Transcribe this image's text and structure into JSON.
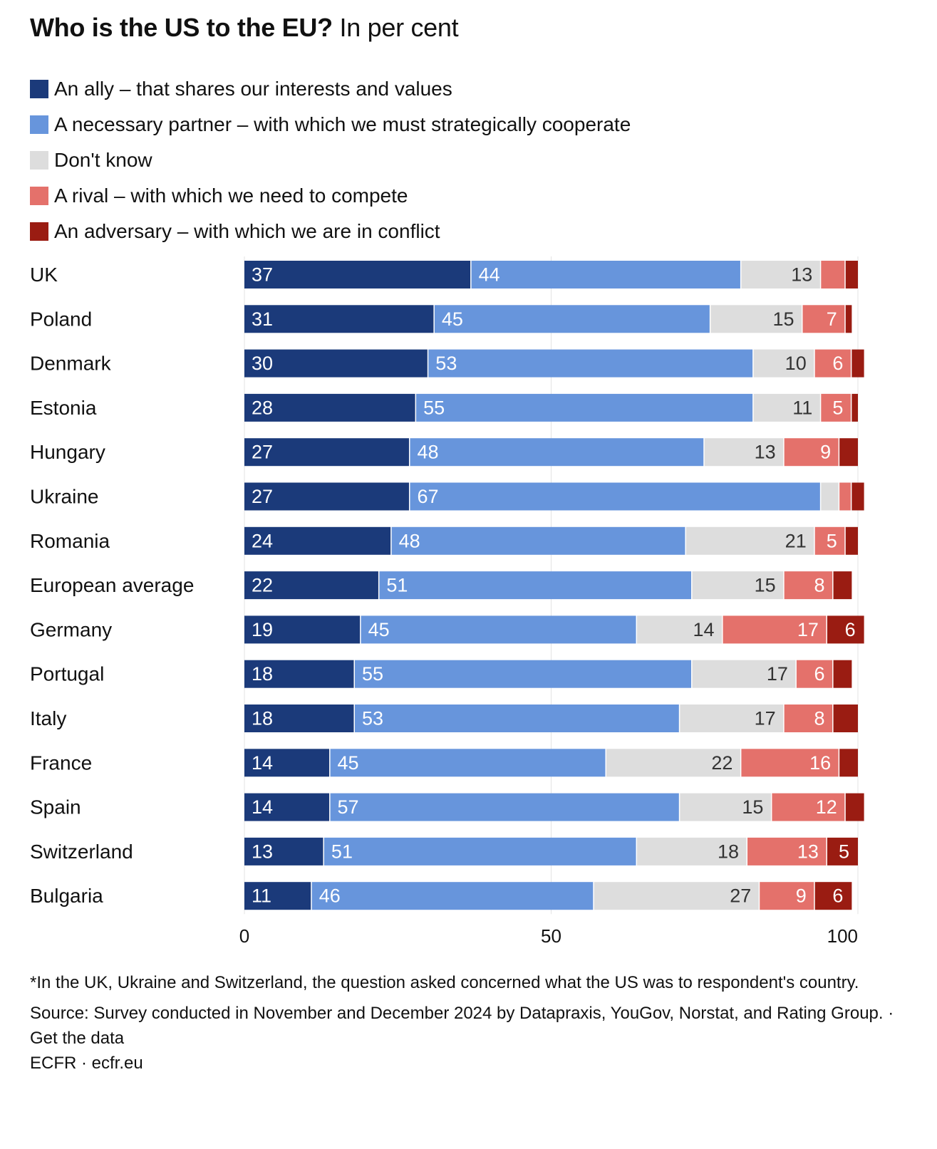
{
  "header": {
    "title_bold": "Who is the US to the EU?",
    "title_regular": "In per cent"
  },
  "legend": [
    {
      "label": "An ally – that shares our interests and values",
      "color": "#1b3a7a"
    },
    {
      "label": "A necessary partner – with which we must strategically cooperate",
      "color": "#6795dc"
    },
    {
      "label": "Don't know",
      "color": "#dddddd"
    },
    {
      "label": "A rival – with which we need to compete",
      "color": "#e4716b"
    },
    {
      "label": "An adversary – with which we are in conflict",
      "color": "#9a1c12"
    }
  ],
  "chart_data": {
    "type": "bar",
    "orientation": "horizontal",
    "stacked": true,
    "title": "Who is the US to the EU? In per cent",
    "xlim": [
      0,
      100
    ],
    "xticks": [
      0,
      50,
      100
    ],
    "grid": true,
    "categories": [
      "UK",
      "Poland",
      "Denmark",
      "Estonia",
      "Hungary",
      "Ukraine",
      "Romania",
      "European average",
      "Germany",
      "Portugal",
      "Italy",
      "France",
      "Spain",
      "Switzerland",
      "Bulgaria"
    ],
    "series": [
      {
        "name": "An ally – that shares our interests and values",
        "color": "#1b3a7a",
        "text_color": "#ffffff",
        "values": [
          37,
          31,
          30,
          28,
          27,
          27,
          24,
          22,
          19,
          18,
          18,
          14,
          14,
          13,
          11
        ]
      },
      {
        "name": "A necessary partner – with which we must strategically cooperate",
        "color": "#6795dc",
        "text_color": "#ffffff",
        "values": [
          44,
          45,
          53,
          55,
          48,
          67,
          48,
          51,
          45,
          55,
          53,
          45,
          57,
          51,
          46
        ]
      },
      {
        "name": "Don't know",
        "color": "#dddddd",
        "text_color": "#333333",
        "values": [
          13,
          15,
          10,
          11,
          13,
          3,
          21,
          15,
          14,
          17,
          17,
          22,
          15,
          18,
          27
        ]
      },
      {
        "name": "A rival – with which we need to compete",
        "color": "#e4716b",
        "text_color": "#ffffff",
        "values": [
          4,
          7,
          6,
          5,
          9,
          2,
          5,
          8,
          17,
          6,
          8,
          16,
          12,
          13,
          9
        ]
      },
      {
        "name": "An adversary – with which we are in conflict",
        "color": "#9a1c12",
        "text_color": "#ffffff",
        "values": [
          2,
          1,
          2,
          1,
          3,
          2,
          2,
          3,
          6,
          3,
          4,
          3,
          3,
          5,
          6
        ]
      }
    ],
    "labels_shown": [
      [
        true,
        true,
        true,
        false,
        false
      ],
      [
        true,
        true,
        true,
        true,
        false
      ],
      [
        true,
        true,
        true,
        true,
        false
      ],
      [
        true,
        true,
        true,
        true,
        false
      ],
      [
        true,
        true,
        true,
        true,
        false
      ],
      [
        true,
        true,
        false,
        false,
        false
      ],
      [
        true,
        true,
        true,
        true,
        false
      ],
      [
        true,
        true,
        true,
        true,
        false
      ],
      [
        true,
        true,
        true,
        true,
        true
      ],
      [
        true,
        true,
        true,
        true,
        false
      ],
      [
        true,
        true,
        true,
        true,
        false
      ],
      [
        true,
        true,
        true,
        true,
        false
      ],
      [
        true,
        true,
        true,
        true,
        false
      ],
      [
        true,
        true,
        true,
        true,
        true
      ],
      [
        true,
        true,
        true,
        true,
        true
      ]
    ]
  },
  "footer": {
    "footnote": "*In the UK, Ukraine and Switzerland, the question asked concerned what the US was to respondent's country.",
    "source": "Source: Survey conducted in November and December 2024 by Datapraxis, YouGov, Norstat, and Rating Group. · Get the data",
    "credit": "ECFR · ecfr.eu"
  }
}
